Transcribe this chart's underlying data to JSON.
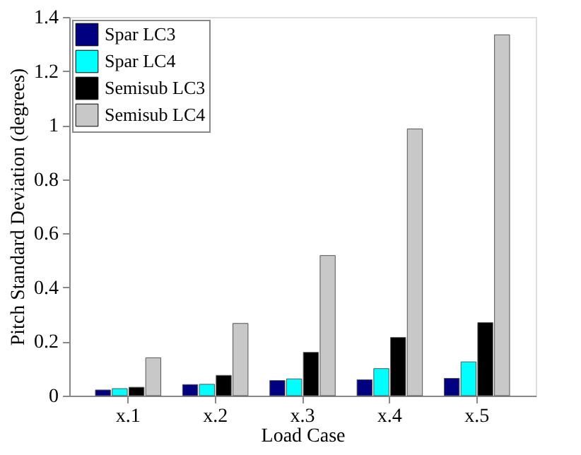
{
  "chart_data": {
    "type": "bar",
    "xlabel": "Load Case",
    "ylabel": "Pitch Standard Deviation (degrees)",
    "categories": [
      "x.1",
      "x.2",
      "x.3",
      "x.4",
      "x.5"
    ],
    "series": [
      {
        "name": "Spar LC3",
        "color": "#000080",
        "values": [
          0.021,
          0.041,
          0.056,
          0.059,
          0.064
        ]
      },
      {
        "name": "Spar LC4",
        "color": "#00ffff",
        "values": [
          0.026,
          0.042,
          0.062,
          0.1,
          0.125
        ]
      },
      {
        "name": "Semisub LC3",
        "color": "#000000",
        "values": [
          0.031,
          0.075,
          0.16,
          0.215,
          0.27
        ]
      },
      {
        "name": "Semisub LC4",
        "color": "#c8c8c8",
        "values": [
          0.14,
          0.267,
          0.518,
          0.986,
          1.334
        ]
      }
    ],
    "ylim": [
      0,
      1.4
    ],
    "yticks": [
      0,
      0.2,
      0.4,
      0.6,
      0.8,
      1,
      1.2,
      1.4
    ],
    "grid": false,
    "legend": "top left"
  }
}
